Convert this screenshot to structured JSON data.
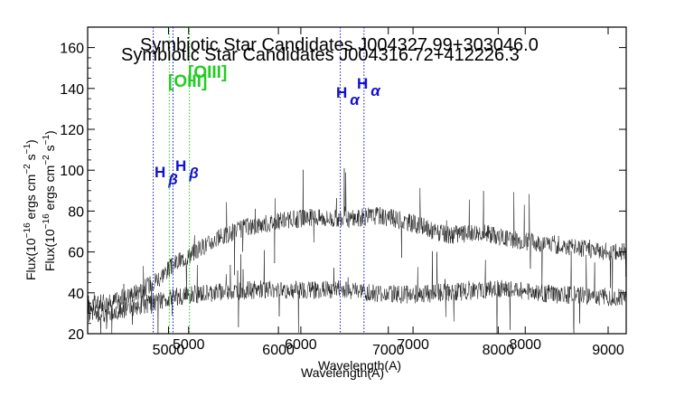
{
  "chart_data": {
    "type": "line",
    "overlay": true,
    "panels": [
      {
        "title": "Symbiotic Star Candidates J004327.99+303046.0",
        "xlabel": "Wavelength(A)",
        "ylabel": "Flux(10^-16 ergs cm^-2 s^-1)",
        "xlim": [
          4100,
          8900
        ],
        "ylim": [
          20,
          170
        ],
        "x_ticks": [
          "5000",
          "6000",
          "7000",
          "8000"
        ],
        "y_ticks": [
          "20",
          "40",
          "60",
          "80",
          "100",
          "120",
          "140",
          "160"
        ],
        "series": [
          {
            "x": [
              4300,
              4600,
              4900,
              5200,
              5500,
              5800,
              6100,
              6400,
              6700,
              7000,
              7300,
              7600,
              7900,
              8200,
              8500,
              8800
            ],
            "y": [
              35,
              42,
              55,
              65,
              72,
              75,
              77,
              76,
              78,
              74,
              68,
              70,
              66,
              64,
              62,
              60
            ]
          }
        ],
        "lines": [
          {
            "label_parts": [
              "H",
              "β"
            ],
            "x": 4861,
            "color": "#1010d0"
          },
          {
            "label_parts": [
              "[OIII]"
            ],
            "x": 5007,
            "color": "#22cc22"
          },
          {
            "label_parts": [
              "H",
              "α"
            ],
            "x": 6563,
            "color": "#1010d0"
          }
        ]
      },
      {
        "title": "Symbiotic Star Candidates J004316.72+412226.3",
        "xlabel": "Wavelength(A)",
        "ylabel": "Flux(10^-16 ergs cm^-2 s^-1)",
        "xlim": [
          4100,
          9000
        ],
        "ylim": [
          20,
          170
        ],
        "x_ticks": [
          "5000",
          "6000",
          "7000",
          "8000",
          "9000"
        ],
        "y_ticks": [
          "20",
          "40",
          "60",
          "80",
          "100",
          "120",
          "140",
          "160"
        ],
        "series": [
          {
            "x": [
              4300,
              4600,
              4900,
              5200,
              5500,
              5800,
              6100,
              6400,
              6700,
              7000,
              7300,
              7600,
              7900,
              8200,
              8500,
              8800
            ],
            "y": [
              30,
              34,
              38,
              40,
              41,
              42,
              41,
              42,
              40,
              39,
              40,
              41,
              42,
              40,
              39,
              38
            ]
          }
        ],
        "lines": [
          {
            "label_parts": [
              "H",
              "β"
            ],
            "x": 4861,
            "color": "#1010d0"
          },
          {
            "label_parts": [
              "[OIII]"
            ],
            "x": 5007,
            "color": "#22cc22"
          },
          {
            "label_parts": [
              "H",
              "α"
            ],
            "x": 6563,
            "color": "#1010d0"
          }
        ]
      }
    ]
  }
}
